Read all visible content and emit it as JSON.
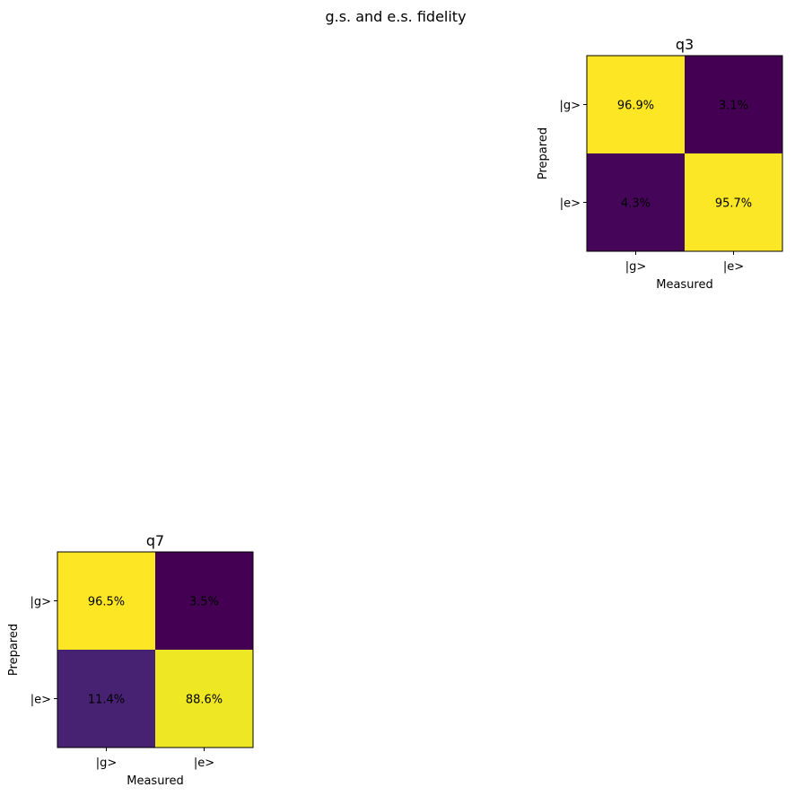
{
  "figure": {
    "suptitle": "g.s. and e.s. fidelity"
  },
  "chart_data": [
    {
      "type": "heatmap",
      "title": "q3",
      "xlabel": "Measured",
      "ylabel": "Prepared",
      "x_categories": [
        "|g>",
        "|e>"
      ],
      "y_categories": [
        "|g>",
        "|e>"
      ],
      "values": [
        [
          96.9,
          3.1
        ],
        [
          4.3,
          95.7
        ]
      ],
      "cell_labels": [
        [
          "96.9%",
          "3.1%"
        ],
        [
          "4.3%",
          "95.7%"
        ]
      ],
      "colormap": "viridis",
      "grid": false
    },
    {
      "type": "heatmap",
      "title": "q7",
      "xlabel": "Measured",
      "ylabel": "Prepared",
      "x_categories": [
        "|g>",
        "|e>"
      ],
      "y_categories": [
        "|g>",
        "|e>"
      ],
      "values": [
        [
          96.5,
          3.5
        ],
        [
          11.4,
          88.6
        ]
      ],
      "cell_labels": [
        [
          "96.5%",
          "3.5%"
        ],
        [
          "11.4%",
          "88.6%"
        ]
      ],
      "colormap": "viridis",
      "grid": false
    }
  ]
}
